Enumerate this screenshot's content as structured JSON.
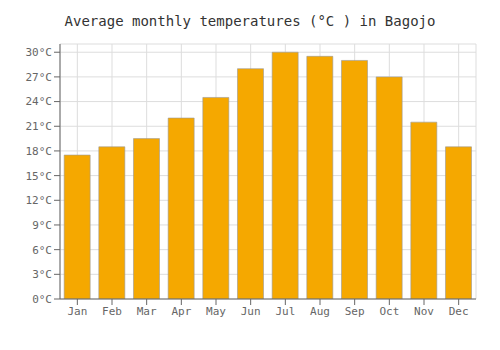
{
  "chart_data": {
    "type": "bar",
    "title": "Average monthly temperatures (°C ) in Bagojo",
    "categories": [
      "Jan",
      "Feb",
      "Mar",
      "Apr",
      "May",
      "Jun",
      "Jul",
      "Aug",
      "Sep",
      "Oct",
      "Nov",
      "Dec"
    ],
    "values": [
      17.5,
      18.5,
      19.5,
      22.0,
      24.5,
      28.0,
      30.0,
      29.5,
      29.0,
      27.0,
      21.5,
      18.5
    ],
    "color": "#F5A800",
    "ylim": [
      0,
      31
    ],
    "yticks": [
      {
        "value": 0,
        "label": "0°C"
      },
      {
        "value": 3,
        "label": "3°C"
      },
      {
        "value": 6,
        "label": "6°C"
      },
      {
        "value": 9,
        "label": "9°C"
      },
      {
        "value": 12,
        "label": "12°C"
      },
      {
        "value": 15,
        "label": "15°C"
      },
      {
        "value": 18,
        "label": "18°C"
      },
      {
        "value": 21,
        "label": "21°C"
      },
      {
        "value": 24,
        "label": "24°C"
      },
      {
        "value": 27,
        "label": "27°C"
      },
      {
        "value": 30,
        "label": "30°C"
      }
    ],
    "grid": true
  }
}
